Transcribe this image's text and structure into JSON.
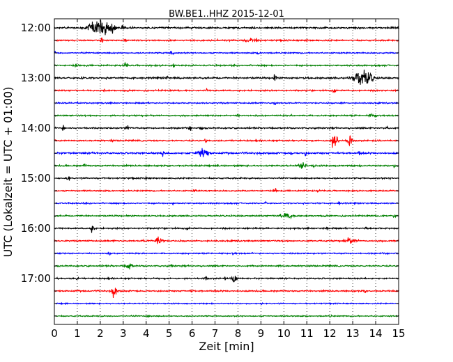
{
  "chart_data": {
    "type": "line",
    "title": "BW.BE1..HHZ 2015-12-01",
    "xlabel": "Zeit  [min]",
    "ylabel": "UTC (Lokalzeit = UTC + 01:00)",
    "xlim": [
      0,
      15
    ],
    "x_ticks": [
      "0",
      "1",
      "2",
      "3",
      "4",
      "5",
      "6",
      "7",
      "8",
      "9",
      "10",
      "11",
      "12",
      "13",
      "14",
      "15"
    ],
    "y_tick_labels": [
      "12:00",
      "13:00",
      "14:00",
      "15:00",
      "16:00",
      "17:00"
    ],
    "y_tick_rows": [
      0,
      4,
      8,
      12,
      16,
      20
    ],
    "x_grid": "dotted",
    "row_colors": [
      "#000000",
      "#ff0000",
      "#0000ff",
      "#008000"
    ],
    "rows": [
      {
        "noise": 1.2,
        "events": [
          {
            "t": 2.05,
            "amp": 12,
            "dur": 0.35
          },
          {
            "t": 1.6,
            "amp": 5,
            "dur": 0.15
          },
          {
            "t": 2.5,
            "amp": 4,
            "dur": 0.15
          },
          {
            "t": 3.0,
            "amp": 3,
            "dur": 0.1
          }
        ]
      },
      {
        "noise": 1.0,
        "events": [
          {
            "t": 2.05,
            "amp": 6,
            "dur": 0.05
          },
          {
            "t": 3.1,
            "amp": 2,
            "dur": 0.05
          },
          {
            "t": 8.6,
            "amp": 3.5,
            "dur": 0.3
          },
          {
            "t": 11.0,
            "amp": 2,
            "dur": 0.05
          }
        ]
      },
      {
        "noise": 0.9,
        "events": [
          {
            "t": 5.1,
            "amp": 5,
            "dur": 0.08
          },
          {
            "t": 0.0,
            "amp": 2,
            "dur": 0.05
          },
          {
            "t": 8.9,
            "amp": 2,
            "dur": 0.05
          }
        ]
      },
      {
        "noise": 1.0,
        "events": [
          {
            "t": 3.1,
            "amp": 3,
            "dur": 0.1
          },
          {
            "t": 0.9,
            "amp": 2,
            "dur": 0.05
          },
          {
            "t": 5.2,
            "amp": 2,
            "dur": 0.05
          }
        ]
      },
      {
        "noise": 1.2,
        "events": [
          {
            "t": 13.45,
            "amp": 13,
            "dur": 0.35
          },
          {
            "t": 4.9,
            "amp": 3,
            "dur": 0.05
          },
          {
            "t": 9.6,
            "amp": 4,
            "dur": 0.08
          },
          {
            "t": 1.2,
            "amp": 2,
            "dur": 0.05
          }
        ]
      },
      {
        "noise": 1.0,
        "events": [
          {
            "t": 12.2,
            "amp": 4,
            "dur": 0.06
          },
          {
            "t": 2.2,
            "amp": 2,
            "dur": 0.05
          },
          {
            "t": 6.6,
            "amp": 2,
            "dur": 0.05
          }
        ]
      },
      {
        "noise": 0.9,
        "events": [
          {
            "t": 1.0,
            "amp": 3,
            "dur": 0.05
          },
          {
            "t": 9.6,
            "amp": 3,
            "dur": 0.05
          },
          {
            "t": 12.5,
            "amp": 2,
            "dur": 0.05
          }
        ]
      },
      {
        "noise": 1.0,
        "events": [
          {
            "t": 14.0,
            "amp": 2,
            "dur": 0.05
          },
          {
            "t": 8.0,
            "amp": 2,
            "dur": 0.05
          },
          {
            "t": 13.8,
            "amp": 2,
            "dur": 0.1
          }
        ]
      },
      {
        "noise": 1.0,
        "events": [
          {
            "t": 0.4,
            "amp": 4,
            "dur": 0.05
          },
          {
            "t": 3.2,
            "amp": 4,
            "dur": 0.08
          },
          {
            "t": 5.9,
            "amp": 3,
            "dur": 0.05
          },
          {
            "t": 6.4,
            "amp": 4,
            "dur": 0.05
          },
          {
            "t": 14.5,
            "amp": 3,
            "dur": 0.05
          }
        ]
      },
      {
        "noise": 1.0,
        "events": [
          {
            "t": 12.2,
            "amp": 10,
            "dur": 0.15
          },
          {
            "t": 12.85,
            "amp": 9,
            "dur": 0.1
          },
          {
            "t": 2.5,
            "amp": 2,
            "dur": 0.05
          },
          {
            "t": 6.6,
            "amp": 2,
            "dur": 0.05
          }
        ]
      },
      {
        "noise": 1.2,
        "events": [
          {
            "t": 6.45,
            "amp": 9,
            "dur": 0.2
          },
          {
            "t": 4.7,
            "amp": 4,
            "dur": 0.05
          },
          {
            "t": 10.3,
            "amp": 3,
            "dur": 0.05
          },
          {
            "t": 10.95,
            "amp": 3,
            "dur": 0.05
          },
          {
            "t": 13.3,
            "amp": 3,
            "dur": 0.05
          },
          {
            "t": 1.7,
            "amp": 2,
            "dur": 0.05
          }
        ]
      },
      {
        "noise": 1.0,
        "events": [
          {
            "t": 10.8,
            "amp": 5,
            "dur": 0.15
          },
          {
            "t": 7.1,
            "amp": 3,
            "dur": 0.05
          },
          {
            "t": 11.3,
            "amp": 3,
            "dur": 0.05
          },
          {
            "t": 1.3,
            "amp": 2,
            "dur": 0.05
          },
          {
            "t": 14.8,
            "amp": 2,
            "dur": 0.05
          }
        ]
      },
      {
        "noise": 1.0,
        "events": [
          {
            "t": 0.6,
            "amp": 5,
            "dur": 0.06
          },
          {
            "t": 2.2,
            "amp": 2,
            "dur": 0.05
          },
          {
            "t": 4.0,
            "amp": 2,
            "dur": 0.05
          }
        ]
      },
      {
        "noise": 0.9,
        "events": [
          {
            "t": 9.6,
            "amp": 3,
            "dur": 0.05
          },
          {
            "t": 11.5,
            "amp": 2,
            "dur": 0.05
          },
          {
            "t": 6.1,
            "amp": 2,
            "dur": 0.05
          }
        ]
      },
      {
        "noise": 0.9,
        "events": [
          {
            "t": 5.2,
            "amp": 2.5,
            "dur": 0.05
          },
          {
            "t": 9.2,
            "amp": 2,
            "dur": 0.05
          },
          {
            "t": 12.4,
            "amp": 2,
            "dur": 0.05
          }
        ]
      },
      {
        "noise": 1.0,
        "events": [
          {
            "t": 10.1,
            "amp": 4,
            "dur": 0.3
          },
          {
            "t": 14.8,
            "amp": 4,
            "dur": 0.05
          },
          {
            "t": 1.2,
            "amp": 2,
            "dur": 0.05
          }
        ]
      },
      {
        "noise": 1.0,
        "events": [
          {
            "t": 1.65,
            "amp": 6,
            "dur": 0.08
          },
          {
            "t": 11.9,
            "amp": 3,
            "dur": 0.05
          },
          {
            "t": 13.6,
            "amp": 3,
            "dur": 0.05
          },
          {
            "t": 5.8,
            "amp": 2,
            "dur": 0.05
          }
        ]
      },
      {
        "noise": 1.0,
        "events": [
          {
            "t": 4.55,
            "amp": 8,
            "dur": 0.15
          },
          {
            "t": 12.9,
            "amp": 3.5,
            "dur": 0.25
          },
          {
            "t": 3.9,
            "amp": 2,
            "dur": 0.05
          }
        ]
      },
      {
        "noise": 0.9,
        "events": [
          {
            "t": 7.8,
            "amp": 2,
            "dur": 0.05
          },
          {
            "t": 2.4,
            "amp": 1.5,
            "dur": 0.05
          }
        ]
      },
      {
        "noise": 1.0,
        "events": [
          {
            "t": 3.25,
            "amp": 7,
            "dur": 0.1
          },
          {
            "t": 5.1,
            "amp": 2,
            "dur": 0.05
          },
          {
            "t": 9.8,
            "amp": 2,
            "dur": 0.05
          }
        ]
      },
      {
        "noise": 1.0,
        "events": [
          {
            "t": 7.85,
            "amp": 8,
            "dur": 0.1
          },
          {
            "t": 6.6,
            "amp": 3,
            "dur": 0.05
          },
          {
            "t": 7.4,
            "amp": 2,
            "dur": 0.05
          },
          {
            "t": 1.0,
            "amp": 2,
            "dur": 0.05
          }
        ]
      },
      {
        "noise": 1.0,
        "events": [
          {
            "t": 2.6,
            "amp": 9,
            "dur": 0.1
          },
          {
            "t": 13.5,
            "amp": 2,
            "dur": 0.05
          },
          {
            "t": 6.0,
            "amp": 2,
            "dur": 0.05
          }
        ]
      },
      {
        "noise": 0.8,
        "events": [
          {
            "t": 0.5,
            "amp": 1.5,
            "dur": 0.05
          },
          {
            "t": 9.0,
            "amp": 1.5,
            "dur": 0.05
          }
        ]
      },
      {
        "noise": 0.8,
        "events": [
          {
            "t": 4.1,
            "amp": 1.5,
            "dur": 0.05
          },
          {
            "t": 12.0,
            "amp": 1.5,
            "dur": 0.05
          }
        ]
      }
    ]
  }
}
